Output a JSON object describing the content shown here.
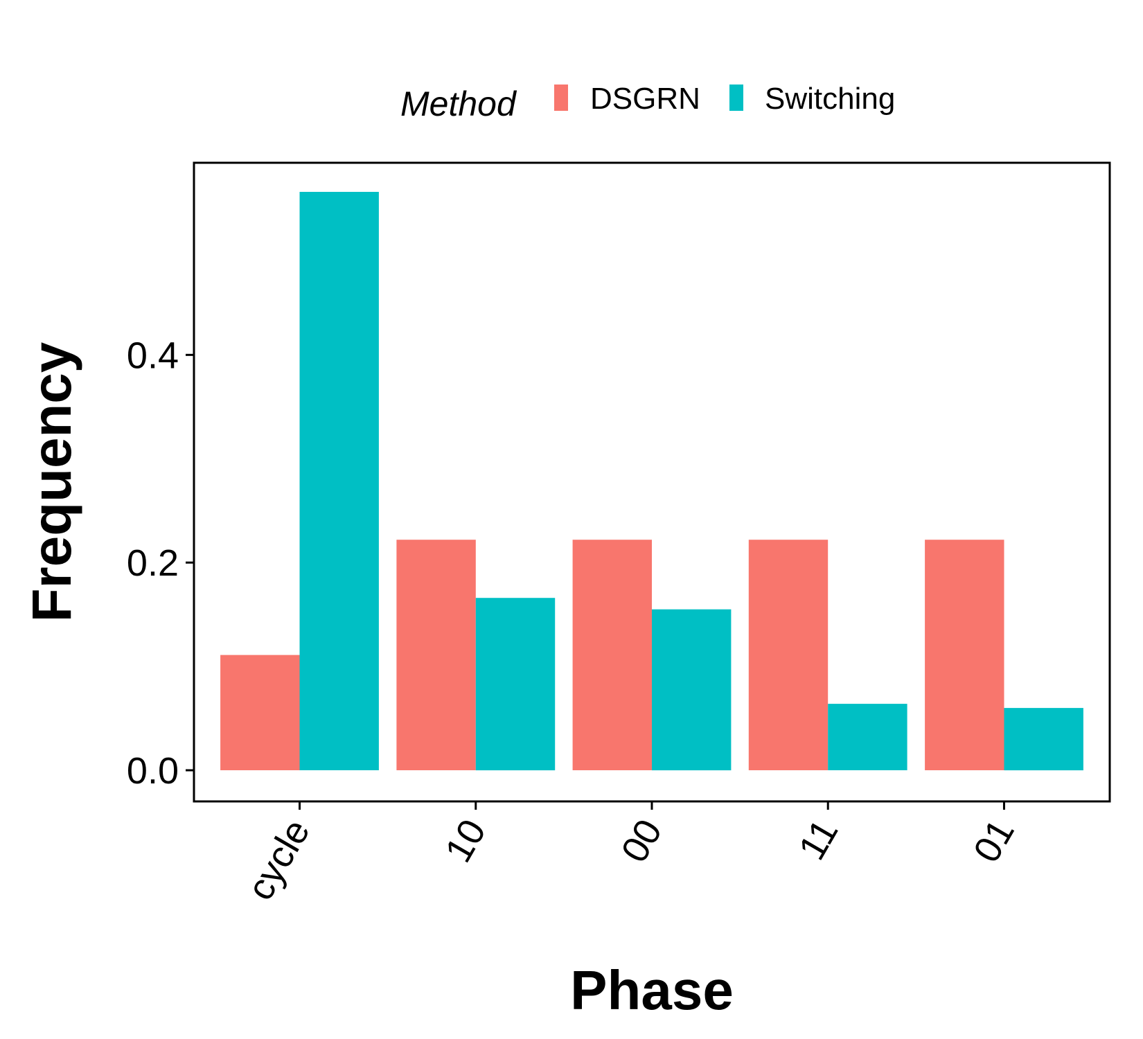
{
  "chart_data": {
    "type": "bar",
    "xlabel": "Phase",
    "ylabel": "Frequency",
    "categories": [
      "cycle",
      "10",
      "00",
      "11",
      "01"
    ],
    "series": [
      {
        "name": "DSGRN",
        "color": "#F8766D",
        "values": [
          0.111,
          0.222,
          0.222,
          0.222,
          0.222
        ]
      },
      {
        "name": "Switching",
        "color": "#00BFC4",
        "values": [
          0.557,
          0.166,
          0.155,
          0.064,
          0.06
        ]
      }
    ],
    "ylim": [
      -0.03,
      0.585
    ],
    "yticks": [
      0.0,
      0.2,
      0.4
    ],
    "ytick_labels": [
      "0.0",
      "0.2",
      "0.4"
    ],
    "legend": {
      "title": "Method",
      "position": "top"
    },
    "grid": false
  }
}
